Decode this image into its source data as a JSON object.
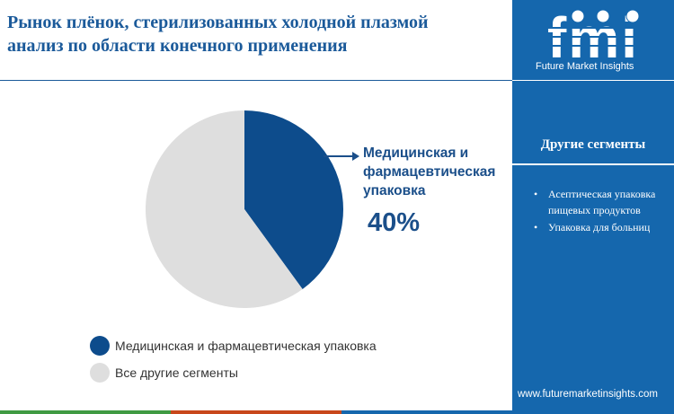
{
  "title": {
    "line1": "Рынок плёнок, стерилизованных холодной плазмой",
    "line2": "анализ по области конечного применения"
  },
  "logo": {
    "letters": "fmi",
    "tagline": "Future Market Insights"
  },
  "sidebar": {
    "title": "Другие сегменты",
    "items": [
      "Асептическая упаковка пищевых продуктов",
      "Упаковка для больниц"
    ],
    "url": "www.futuremarketinsights.com"
  },
  "callout": {
    "line1": "Медицинская и",
    "line2": "фармацевтическая",
    "line3": "упаковка",
    "value": "40%"
  },
  "chart_data": {
    "type": "pie",
    "series": [
      {
        "name": "Медицинская и фармацевтическая упаковка",
        "value": 40,
        "color": "#0d4c8c"
      },
      {
        "name": "Все другие сегменты",
        "value": 60,
        "color": "#dedede"
      }
    ]
  },
  "colors": {
    "accent": "#1567ad",
    "title": "#1b5a9a",
    "highlight": "#0d4c8c",
    "other": "#dedede",
    "bottom_bar": [
      "#3f9a42",
      "#c8471b",
      "#1567ad"
    ]
  }
}
